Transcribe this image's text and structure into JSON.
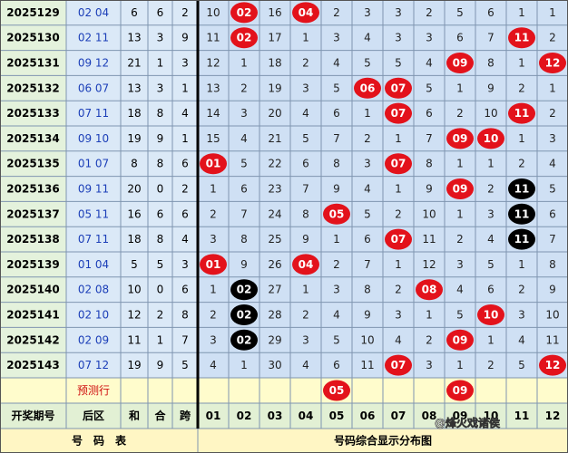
{
  "table": {
    "rows": [
      {
        "issue": "2025129",
        "back": "02 04",
        "sum": "6",
        "mod": "6",
        "span": "2",
        "dist": [
          "10",
          "02",
          "16",
          "04",
          "2",
          "3",
          "3",
          "2",
          "5",
          "6",
          "1",
          "1"
        ],
        "red": [
          1,
          3
        ]
      },
      {
        "issue": "2025130",
        "back": "02 11",
        "sum": "13",
        "mod": "3",
        "span": "9",
        "dist": [
          "11",
          "02",
          "17",
          "1",
          "3",
          "4",
          "3",
          "3",
          "6",
          "7",
          "11",
          "2"
        ],
        "red": [
          1,
          10
        ]
      },
      {
        "issue": "2025131",
        "back": "09 12",
        "sum": "21",
        "mod": "1",
        "span": "3",
        "dist": [
          "12",
          "1",
          "18",
          "2",
          "4",
          "5",
          "5",
          "4",
          "09",
          "8",
          "1",
          "12"
        ],
        "red": [
          8,
          11
        ]
      },
      {
        "issue": "2025132",
        "back": "06 07",
        "sum": "13",
        "mod": "3",
        "span": "1",
        "dist": [
          "13",
          "2",
          "19",
          "3",
          "5",
          "06",
          "07",
          "5",
          "1",
          "9",
          "2",
          "1"
        ],
        "red": [
          5,
          6
        ]
      },
      {
        "issue": "2025133",
        "back": "07 11",
        "sum": "18",
        "mod": "8",
        "span": "4",
        "dist": [
          "14",
          "3",
          "20",
          "4",
          "6",
          "1",
          "07",
          "6",
          "2",
          "10",
          "11",
          "2"
        ],
        "red": [
          6,
          10
        ]
      },
      {
        "issue": "2025134",
        "back": "09 10",
        "sum": "19",
        "mod": "9",
        "span": "1",
        "dist": [
          "15",
          "4",
          "21",
          "5",
          "7",
          "2",
          "1",
          "7",
          "09",
          "10",
          "1",
          "3"
        ],
        "red": [
          8,
          9
        ]
      },
      {
        "issue": "2025135",
        "back": "01 07",
        "sum": "8",
        "mod": "8",
        "span": "6",
        "dist": [
          "01",
          "5",
          "22",
          "6",
          "8",
          "3",
          "07",
          "8",
          "1",
          "1",
          "2",
          "4"
        ],
        "red": [
          0,
          6
        ]
      },
      {
        "issue": "2025136",
        "back": "09 11",
        "sum": "20",
        "mod": "0",
        "span": "2",
        "dist": [
          "1",
          "6",
          "23",
          "7",
          "9",
          "4",
          "1",
          "9",
          "09",
          "2",
          "11",
          "5"
        ],
        "red": [
          8
        ],
        "black": [
          10
        ]
      },
      {
        "issue": "2025137",
        "back": "05 11",
        "sum": "16",
        "mod": "6",
        "span": "6",
        "dist": [
          "2",
          "7",
          "24",
          "8",
          "05",
          "5",
          "2",
          "10",
          "1",
          "3",
          "11",
          "6"
        ],
        "red": [
          4
        ],
        "black": [
          10
        ]
      },
      {
        "issue": "2025138",
        "back": "07 11",
        "sum": "18",
        "mod": "8",
        "span": "4",
        "dist": [
          "3",
          "8",
          "25",
          "9",
          "1",
          "6",
          "07",
          "11",
          "2",
          "4",
          "11",
          "7"
        ],
        "red": [
          6
        ],
        "black": [
          10
        ]
      },
      {
        "issue": "2025139",
        "back": "01 04",
        "sum": "5",
        "mod": "5",
        "span": "3",
        "dist": [
          "01",
          "9",
          "26",
          "04",
          "2",
          "7",
          "1",
          "12",
          "3",
          "5",
          "1",
          "8"
        ],
        "red": [
          0,
          3
        ]
      },
      {
        "issue": "2025140",
        "back": "02 08",
        "sum": "10",
        "mod": "0",
        "span": "6",
        "dist": [
          "1",
          "02",
          "27",
          "1",
          "3",
          "8",
          "2",
          "08",
          "4",
          "6",
          "2",
          "9"
        ],
        "red": [
          7
        ],
        "black": [
          1
        ]
      },
      {
        "issue": "2025141",
        "back": "02 10",
        "sum": "12",
        "mod": "2",
        "span": "8",
        "dist": [
          "2",
          "02",
          "28",
          "2",
          "4",
          "9",
          "3",
          "1",
          "5",
          "10",
          "3",
          "10"
        ],
        "red": [
          9
        ],
        "black": [
          1
        ]
      },
      {
        "issue": "2025142",
        "back": "02 09",
        "sum": "11",
        "mod": "1",
        "span": "7",
        "dist": [
          "3",
          "02",
          "29",
          "3",
          "5",
          "10",
          "4",
          "2",
          "09",
          "1",
          "4",
          "11"
        ],
        "red": [
          8
        ],
        "black": [
          1
        ]
      },
      {
        "issue": "2025143",
        "back": "07 12",
        "sum": "19",
        "mod": "9",
        "span": "5",
        "dist": [
          "4",
          "1",
          "30",
          "4",
          "6",
          "11",
          "07",
          "3",
          "1",
          "2",
          "5",
          "12"
        ],
        "red": [
          6,
          11
        ]
      }
    ],
    "predict": {
      "label": "预测行",
      "cells": [
        null,
        null,
        null,
        null,
        "05",
        null,
        null,
        null,
        "09",
        null,
        null,
        null
      ]
    },
    "header": [
      "开奖期号",
      "后区",
      "和",
      "合",
      "跨",
      "01",
      "02",
      "03",
      "04",
      "05",
      "06",
      "07",
      "08",
      "09",
      "10",
      "11",
      "12"
    ],
    "footer": {
      "left": "号　码　表",
      "right": "号码综合显示分布图"
    },
    "watermark": "@烽火戏诸侯"
  }
}
